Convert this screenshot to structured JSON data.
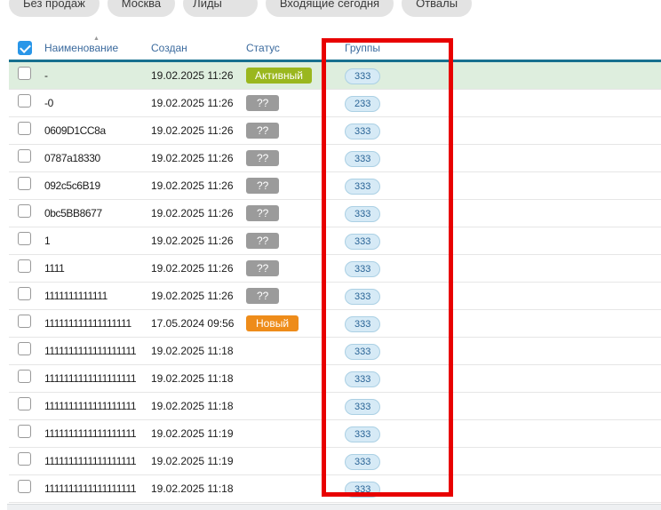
{
  "tabs": [
    {
      "label": "Без продаж"
    },
    {
      "label": "Москва"
    },
    {
      "label": "Лиды"
    },
    {
      "label": "Входящие сегодня"
    },
    {
      "label": "Отвалы"
    }
  ],
  "table": {
    "header": {
      "name": "Наименование",
      "created": "Создан",
      "status": "Статус",
      "groups": "Группы"
    },
    "sort_icon": "▲",
    "header_checkbox_checked": true,
    "rows": [
      {
        "name": "-",
        "created": "19.02.2025 11:26",
        "status": "Активный",
        "status_type": "active",
        "group": "333",
        "highlighted": true
      },
      {
        "name": "-0",
        "created": "19.02.2025 11:26",
        "status": "??",
        "status_type": "unknown",
        "group": "233"
      },
      {
        "name": "0609D1CC8a",
        "created": "19.02.2025 11:26",
        "status": "??",
        "status_type": "unknown",
        "group": "333"
      },
      {
        "name": "0787a18330",
        "created": "19.02.2025 11:26",
        "status": "??",
        "status_type": "unknown",
        "group": "333"
      },
      {
        "name": "092c5c6B19",
        "created": "19.02.2025 11:26",
        "status": "??",
        "status_type": "unknown",
        "group": "333"
      },
      {
        "name": "0bc5BB8677",
        "created": "19.02.2025 11:26",
        "status": "??",
        "status_type": "unknown",
        "group": "333"
      },
      {
        "name": "1",
        "created": "19.02.2025 11:26",
        "status": "??",
        "status_type": "unknown",
        "group": "333"
      },
      {
        "name": "1111",
        "created": "19.02.2025 11:26",
        "status": "??",
        "status_type": "unknown",
        "group": "333"
      },
      {
        "name": "1111111111111",
        "created": "19.02.2025 11:26",
        "status": "??",
        "status_type": "unknown",
        "group": "333"
      },
      {
        "name": "111111111111111111",
        "created": "17.05.2024 09:56",
        "status": "Новый",
        "status_type": "new",
        "group": "333"
      },
      {
        "name": "1111111111111111111",
        "created": "19.02.2025 11:18",
        "status": "",
        "status_type": "none",
        "group": "333"
      },
      {
        "name": "1111111111111111111",
        "created": "19.02.2025 11:18",
        "status": "",
        "status_type": "none",
        "group": "333"
      },
      {
        "name": "1111111111111111111",
        "created": "19.02.2025 11:18",
        "status": "",
        "status_type": "none",
        "group": "333"
      },
      {
        "name": "1111111111111111111",
        "created": "19.02.2025 11:19",
        "status": "",
        "status_type": "none",
        "group": "333"
      },
      {
        "name": "1111111111111111111",
        "created": "19.02.2025 11:19",
        "status": "",
        "status_type": "none",
        "group": "333"
      },
      {
        "name": "1111111111111111111",
        "created": "19.02.2025 11:18",
        "status": "",
        "status_type": "none",
        "group": "333"
      }
    ]
  },
  "annotation": {
    "type": "highlight-rectangle",
    "highlighted_column": "Группы",
    "color": "#e80000"
  },
  "colors": {
    "header_text": "#3c6b9e",
    "header_border": "#17708f",
    "row_highlight_bg": "#deeede",
    "badge_active_bg": "#9ab71e",
    "badge_unknown_bg": "#9b9b9b",
    "badge_new_bg": "#ee8c1a",
    "group_pill_bg": "#d6eaf6",
    "group_pill_border": "#abd0e4",
    "group_pill_text": "#2a6496",
    "checkbox_checked_bg": "#2996e8",
    "tab_bg": "#e3e3e3"
  }
}
